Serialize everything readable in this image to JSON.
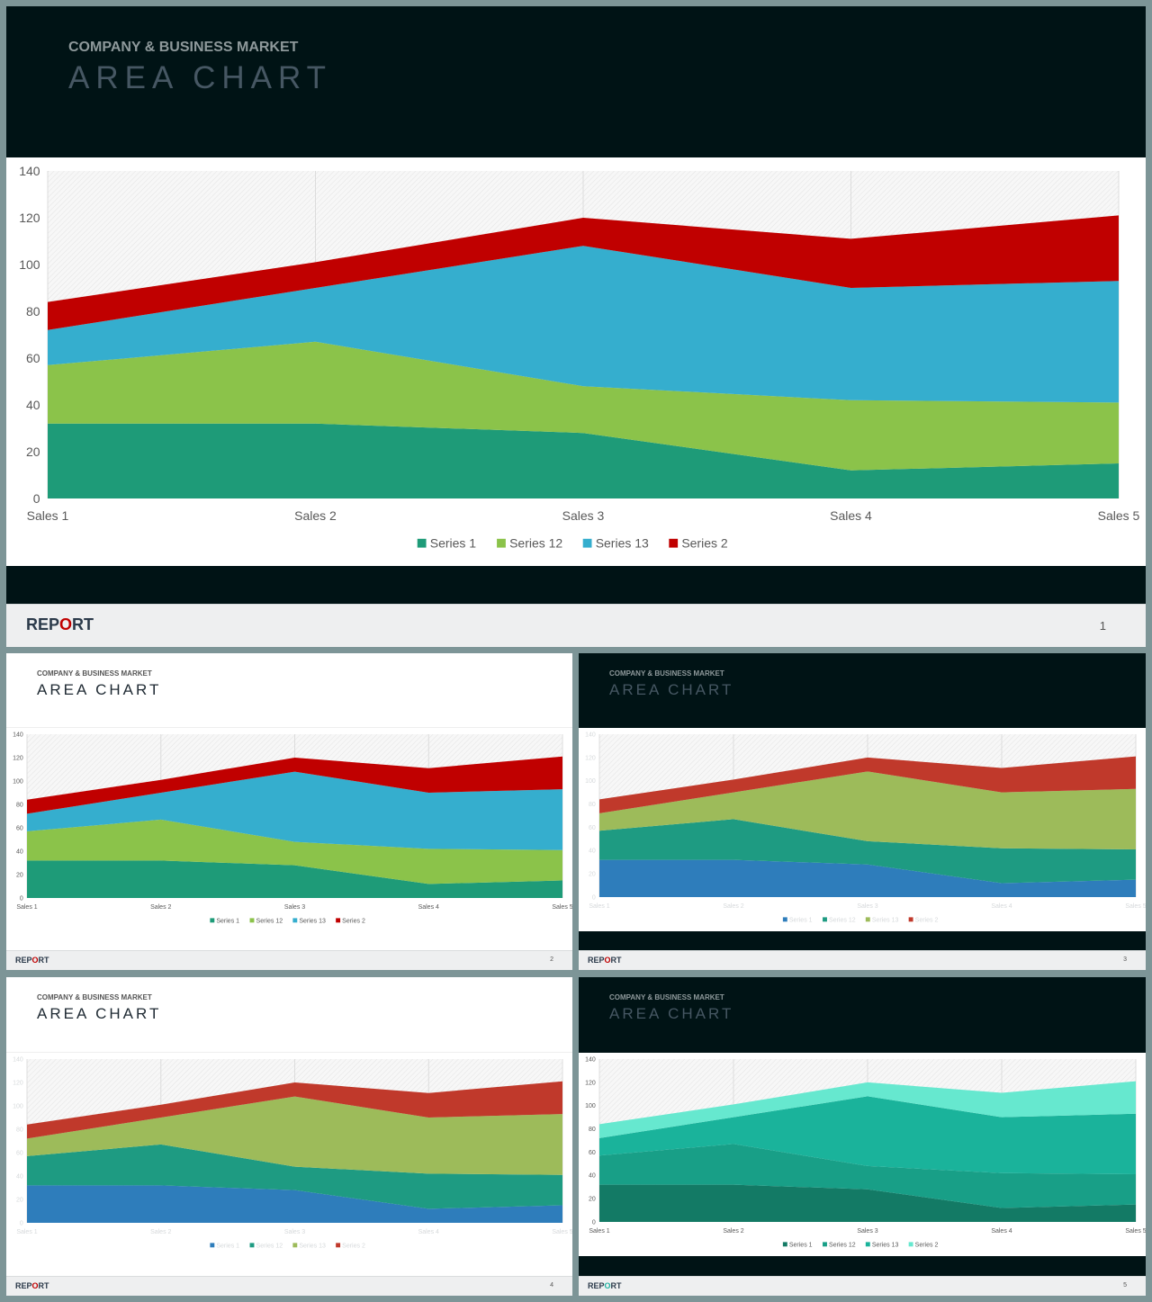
{
  "slides": [
    {
      "subtitle": "COMPANY & BUSINESS MARKET",
      "title": "AREA CHART",
      "footer_left": "REPORT",
      "footer_page": "1",
      "colors": [
        "#1e9b78",
        "#8bc34a",
        "#35aece",
        "#c00000"
      ]
    },
    {
      "subtitle": "COMPANY & BUSINESS MARKET",
      "title": "AREA CHART",
      "footer_left": "REPORT",
      "footer_page": "2",
      "colors": [
        "#1e9b78",
        "#8bc34a",
        "#35aece",
        "#c00000"
      ]
    },
    {
      "subtitle": "COMPANY & BUSINESS MARKET",
      "title": "AREA CHART",
      "footer_left": "REPORT",
      "footer_page": "3",
      "colors": [
        "#2e7dbb",
        "#1e9b82",
        "#9dbb5a",
        "#c0392b"
      ]
    },
    {
      "subtitle": "COMPANY & BUSINESS MARKET",
      "title": "AREA CHART",
      "footer_left": "REPORT",
      "footer_page": "4",
      "colors": [
        "#2e7dbb",
        "#1e9b82",
        "#9dbb5a",
        "#c0392b"
      ]
    },
    {
      "subtitle": "COMPANY & BUSINESS MARKET",
      "title": "AREA CHART",
      "footer_left": "REPORT",
      "footer_page": "5",
      "colors": [
        "#137a65",
        "#189f87",
        "#1ab39b",
        "#66e8cf"
      ]
    }
  ],
  "chart_data": {
    "type": "area",
    "stacked": true,
    "categories": [
      "Sales 1",
      "Sales 2",
      "Sales 3",
      "Sales 4",
      "Sales 5"
    ],
    "series": [
      {
        "name": "Series 1",
        "values": [
          32,
          32,
          28,
          12,
          15
        ]
      },
      {
        "name": "Series 12",
        "values": [
          25,
          35,
          20,
          30,
          26
        ]
      },
      {
        "name": "Series 13",
        "values": [
          15,
          23,
          60,
          48,
          52
        ]
      },
      {
        "name": "Series 2",
        "values": [
          12,
          11,
          12,
          21,
          28
        ]
      }
    ],
    "ylim": [
      0,
      140
    ],
    "yticks": [
      "0",
      "20",
      "40",
      "60",
      "80",
      "100",
      "120",
      "140"
    ],
    "grid": true,
    "legend_position": "bottom"
  }
}
